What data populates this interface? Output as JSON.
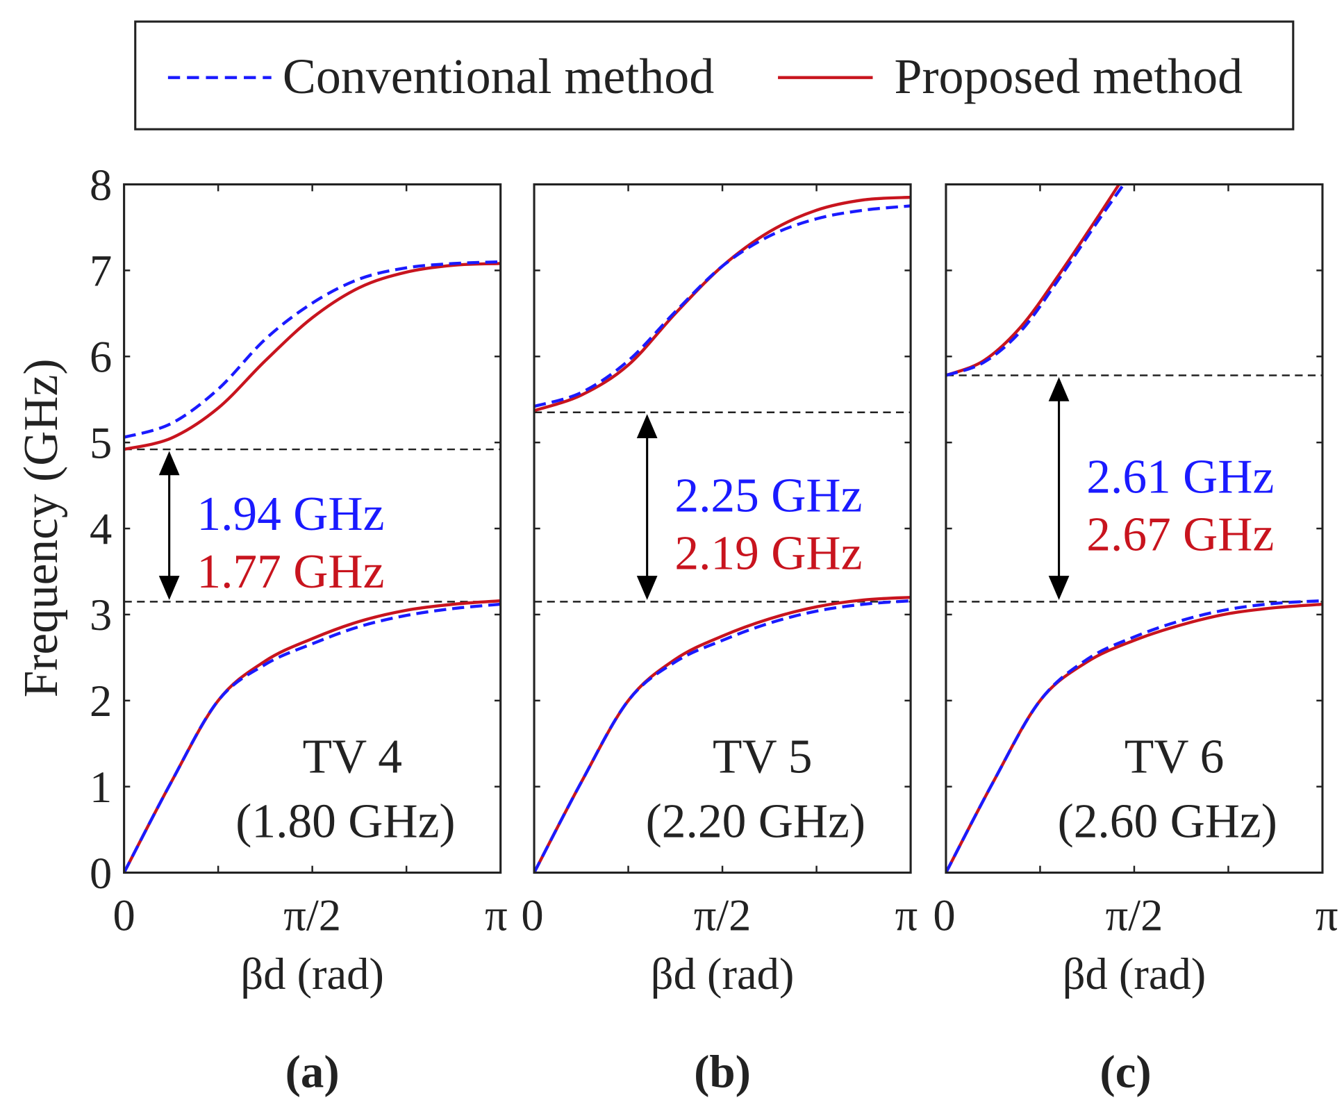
{
  "chart_data": {
    "type": "line",
    "legend": {
      "placement": "top",
      "entries": [
        {
          "name": "Conventional method",
          "color": "#1a1aff",
          "style": "dashed"
        },
        {
          "name": "Proposed method",
          "color": "#c8141e",
          "style": "solid"
        }
      ]
    },
    "shared": {
      "ylabel": "Frequency (GHz)",
      "xlabel": "βd (rad)",
      "ylim": [
        0,
        8
      ],
      "xlim_pi_units": [
        0,
        1
      ],
      "yticks": [
        "0",
        "1",
        "2",
        "3",
        "4",
        "5",
        "6",
        "7",
        "8"
      ],
      "xtick_labels": [
        "0",
        "π/2",
        "π"
      ],
      "x_unit_note": "x values are in units of π rad"
    },
    "panels": [
      {
        "panel_label": "(a)",
        "title": "TV 4",
        "subtitle": "(1.80 GHz)",
        "gap_lines": [
          4.92,
          3.15
        ],
        "gap_conventional": "1.94 GHz",
        "gap_proposed": "1.77 GHz",
        "arrow_x": 0.12,
        "series": [
          {
            "name": "Conventional method",
            "band": "lower",
            "x": [
              0,
              0.125,
              0.25,
              0.375,
              0.5,
              0.625,
              0.75,
              0.875,
              1
            ],
            "y": [
              0,
              1.05,
              2.0,
              2.42,
              2.66,
              2.86,
              2.99,
              3.07,
              3.12
            ]
          },
          {
            "name": "Proposed method",
            "band": "lower",
            "x": [
              0,
              0.125,
              0.25,
              0.375,
              0.5,
              0.625,
              0.75,
              0.875,
              1
            ],
            "y": [
              0,
              1.05,
              2.0,
              2.46,
              2.72,
              2.92,
              3.05,
              3.12,
              3.16
            ]
          },
          {
            "name": "Conventional method",
            "band": "upper",
            "x": [
              0,
              0.125,
              0.25,
              0.375,
              0.5,
              0.625,
              0.75,
              0.875,
              1
            ],
            "y": [
              5.06,
              5.22,
              5.62,
              6.2,
              6.62,
              6.9,
              7.03,
              7.08,
              7.1
            ]
          },
          {
            "name": "Proposed method",
            "band": "upper",
            "x": [
              0,
              0.125,
              0.25,
              0.375,
              0.5,
              0.625,
              0.75,
              0.875,
              1
            ],
            "y": [
              4.92,
              5.05,
              5.4,
              5.95,
              6.45,
              6.8,
              6.98,
              7.06,
              7.08
            ]
          }
        ]
      },
      {
        "panel_label": "(b)",
        "title": "TV 5",
        "subtitle": "(2.20 GHz)",
        "gap_lines": [
          5.35,
          3.15
        ],
        "gap_conventional": "2.25 GHz",
        "gap_proposed": "2.19 GHz",
        "arrow_x": 0.3,
        "series": [
          {
            "name": "Conventional method",
            "band": "lower",
            "x": [
              0,
              0.125,
              0.25,
              0.375,
              0.5,
              0.625,
              0.75,
              0.875,
              1
            ],
            "y": [
              0,
              1.05,
              2.0,
              2.45,
              2.7,
              2.9,
              3.04,
              3.12,
              3.16
            ]
          },
          {
            "name": "Proposed method",
            "band": "lower",
            "x": [
              0,
              0.125,
              0.25,
              0.375,
              0.5,
              0.625,
              0.75,
              0.875,
              1
            ],
            "y": [
              0,
              1.05,
              2.0,
              2.48,
              2.75,
              2.95,
              3.09,
              3.17,
              3.2
            ]
          },
          {
            "name": "Conventional method",
            "band": "upper",
            "x": [
              0,
              0.125,
              0.25,
              0.375,
              0.5,
              0.625,
              0.75,
              0.875,
              1
            ],
            "y": [
              5.42,
              5.58,
              5.95,
              6.52,
              7.05,
              7.4,
              7.6,
              7.7,
              7.75
            ]
          },
          {
            "name": "Proposed method",
            "band": "upper",
            "x": [
              0,
              0.125,
              0.25,
              0.375,
              0.5,
              0.625,
              0.75,
              0.875,
              1
            ],
            "y": [
              5.37,
              5.55,
              5.9,
              6.5,
              7.05,
              7.45,
              7.7,
              7.82,
              7.85
            ]
          }
        ]
      },
      {
        "panel_label": "(c)",
        "title": "TV 6",
        "subtitle": "(2.60 GHz)",
        "gap_lines": [
          5.78,
          3.15
        ],
        "gap_conventional": "2.61 GHz",
        "gap_proposed": "2.67 GHz",
        "arrow_x": 0.3,
        "series": [
          {
            "name": "Conventional method",
            "band": "lower",
            "x": [
              0,
              0.125,
              0.25,
              0.375,
              0.5,
              0.625,
              0.75,
              0.875,
              1
            ],
            "y": [
              0,
              1.05,
              2.0,
              2.48,
              2.74,
              2.93,
              3.06,
              3.13,
              3.16
            ]
          },
          {
            "name": "Proposed method",
            "band": "lower",
            "x": [
              0,
              0.125,
              0.25,
              0.375,
              0.5,
              0.625,
              0.75,
              0.875,
              1
            ],
            "y": [
              0,
              1.05,
              2.0,
              2.45,
              2.7,
              2.88,
              3.01,
              3.08,
              3.12
            ]
          },
          {
            "name": "Conventional method",
            "band": "upper",
            "x": [
              0,
              0.1,
              0.2,
              0.3,
              0.4,
              0.48
            ],
            "y": [
              5.78,
              5.93,
              6.3,
              6.9,
              7.55,
              8.05
            ]
          },
          {
            "name": "Proposed method",
            "band": "upper",
            "x": [
              0,
              0.1,
              0.2,
              0.3,
              0.4,
              0.467
            ],
            "y": [
              5.78,
              5.95,
              6.35,
              6.95,
              7.6,
              8.05
            ]
          }
        ]
      }
    ]
  }
}
